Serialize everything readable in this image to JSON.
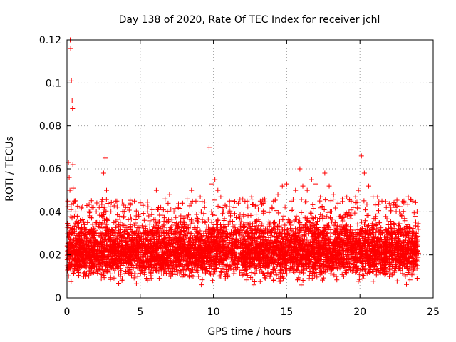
{
  "chart_data": {
    "type": "scatter",
    "title": "Day 138 of 2020, Rate Of TEC Index for receiver jchl",
    "xlabel": "GPS time / hours",
    "ylabel": "ROTI / TECUs",
    "xlim": [
      0,
      25
    ],
    "ylim": [
      0,
      0.12
    ],
    "xticks": [
      0,
      5,
      10,
      15,
      20,
      25
    ],
    "xtick_labels": [
      "0",
      "5",
      "10",
      "15",
      "20",
      "25"
    ],
    "yticks": [
      0,
      0.02,
      0.04,
      0.06,
      0.08,
      0.1,
      0.12
    ],
    "ytick_labels": [
      "0",
      "0.02",
      "0.04",
      "0.06",
      "0.08",
      "0.1",
      "0.12"
    ],
    "grid": true,
    "marker": "+",
    "color": "#ff0000",
    "series": [
      {
        "name": "ROTI",
        "x": [
          0.05,
          0.1,
          0.15,
          0.2,
          0.22,
          0.25,
          0.3,
          0.35,
          0.38,
          0.4,
          0.42,
          0.45,
          0.5,
          0.6,
          0.7,
          0.8,
          0.9,
          1.0,
          1.2,
          1.4,
          1.6,
          1.8,
          2.0,
          2.2,
          2.4,
          2.5,
          2.6,
          2.7,
          2.8,
          3.0,
          3.2,
          3.4,
          3.6,
          3.8,
          4.0,
          4.3,
          4.6,
          4.9,
          5.2,
          5.5,
          5.8,
          6.1,
          6.4,
          6.7,
          7.0,
          7.3,
          7.6,
          7.9,
          8.2,
          8.5,
          8.8,
          9.1,
          9.4,
          9.7,
          9.9,
          10.1,
          10.3,
          10.5,
          10.8,
          11.1,
          11.4,
          11.7,
          12.0,
          12.3,
          12.6,
          12.9,
          13.2,
          13.5,
          13.8,
          14.1,
          14.4,
          14.7,
          15.0,
          15.3,
          15.6,
          15.9,
          16.1,
          16.4,
          16.7,
          17.0,
          17.3,
          17.6,
          17.9,
          18.2,
          18.5,
          18.8,
          19.1,
          19.4,
          19.7,
          19.9,
          20.1,
          20.3,
          20.6,
          20.9,
          21.2,
          21.5,
          21.8,
          22.1,
          22.4,
          22.7,
          23.0,
          23.3,
          23.6,
          23.9
        ],
        "y": [
          0.045,
          0.063,
          0.056,
          0.05,
          0.12,
          0.116,
          0.101,
          0.092,
          0.088,
          0.062,
          0.051,
          0.044,
          0.045,
          0.04,
          0.038,
          0.035,
          0.036,
          0.033,
          0.034,
          0.035,
          0.04,
          0.042,
          0.04,
          0.042,
          0.038,
          0.058,
          0.065,
          0.05,
          0.036,
          0.04,
          0.035,
          0.045,
          0.038,
          0.04,
          0.042,
          0.044,
          0.045,
          0.038,
          0.043,
          0.04,
          0.041,
          0.05,
          0.042,
          0.046,
          0.048,
          0.04,
          0.042,
          0.044,
          0.046,
          0.05,
          0.045,
          0.047,
          0.042,
          0.07,
          0.053,
          0.055,
          0.05,
          0.047,
          0.043,
          0.045,
          0.042,
          0.044,
          0.046,
          0.045,
          0.047,
          0.043,
          0.045,
          0.046,
          0.04,
          0.045,
          0.048,
          0.052,
          0.053,
          0.045,
          0.05,
          0.06,
          0.052,
          0.05,
          0.055,
          0.053,
          0.047,
          0.058,
          0.052,
          0.048,
          0.044,
          0.046,
          0.047,
          0.045,
          0.047,
          0.05,
          0.066,
          0.058,
          0.052,
          0.047,
          0.047,
          0.045,
          0.042,
          0.04,
          0.042,
          0.04,
          0.045,
          0.047,
          0.045,
          0.04
        ],
        "band": {
          "center": 0.02,
          "low": 0.005,
          "high": 0.035
        }
      }
    ]
  }
}
